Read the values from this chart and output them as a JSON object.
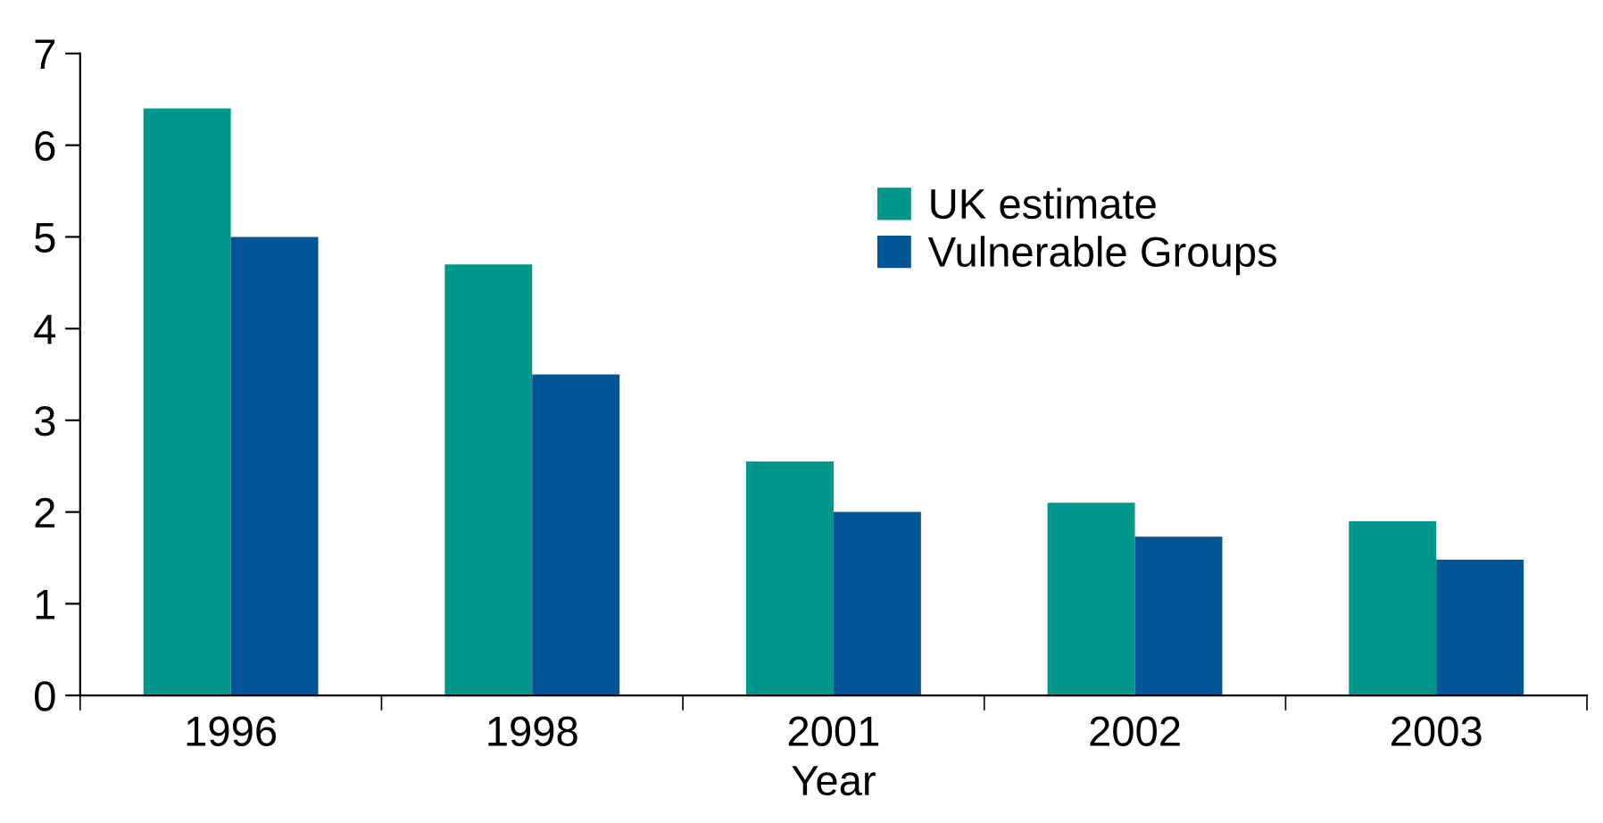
{
  "chart_data": {
    "type": "bar",
    "xlabel": "Year",
    "categories": [
      "1996",
      "1998",
      "2001",
      "2002",
      "2003"
    ],
    "series": [
      {
        "name": "UK estimate",
        "color": "#00968c",
        "values": [
          6.4,
          4.7,
          2.55,
          2.1,
          1.9
        ]
      },
      {
        "name": "Vulnerable Groups",
        "color": "#005596",
        "values": [
          5.0,
          3.5,
          2.0,
          1.73,
          1.48
        ]
      }
    ],
    "ylim": [
      0,
      7
    ],
    "yticks": [
      0,
      1,
      2,
      3,
      4,
      5,
      6,
      7
    ],
    "grid": false,
    "legend": "top right"
  }
}
